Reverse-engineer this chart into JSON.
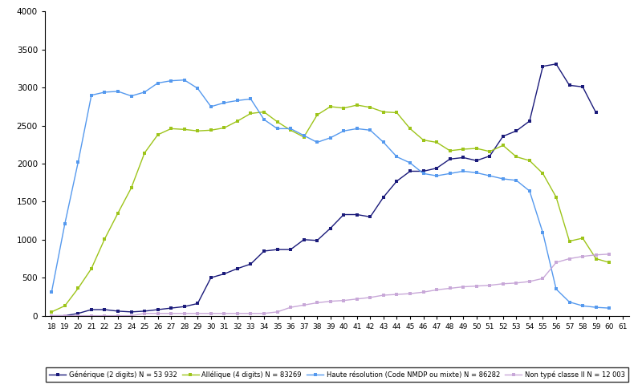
{
  "ages": [
    18,
    19,
    20,
    21,
    22,
    23,
    24,
    25,
    26,
    27,
    28,
    29,
    30,
    31,
    32,
    33,
    34,
    35,
    36,
    37,
    38,
    39,
    40,
    41,
    42,
    43,
    44,
    45,
    46,
    47,
    48,
    49,
    50,
    51,
    52,
    53,
    54,
    55,
    56,
    57,
    58,
    59,
    60,
    61
  ],
  "generique": [
    0,
    0,
    30,
    80,
    80,
    60,
    50,
    60,
    80,
    100,
    120,
    160,
    500,
    550,
    620,
    680,
    850,
    870,
    870,
    1000,
    990,
    1150,
    1330,
    1330,
    1300,
    1560,
    1770,
    1900,
    1900,
    1940,
    2060,
    2080,
    2040,
    2100,
    2360,
    2430,
    2560,
    3280,
    3310,
    3030,
    3010,
    2670,
    null,
    null
  ],
  "allelique": [
    50,
    130,
    360,
    620,
    1010,
    1350,
    1680,
    2140,
    2380,
    2460,
    2450,
    2430,
    2440,
    2470,
    2560,
    2660,
    2680,
    2550,
    2440,
    2350,
    2640,
    2750,
    2730,
    2770,
    2740,
    2680,
    2670,
    2460,
    2310,
    2280,
    2170,
    2190,
    2200,
    2160,
    2240,
    2090,
    2040,
    1870,
    1560,
    980,
    1020,
    750,
    700,
    null
  ],
  "haute_resolution": [
    310,
    1210,
    2020,
    2900,
    2940,
    2950,
    2890,
    2940,
    3060,
    3090,
    3100,
    2990,
    2750,
    2800,
    2830,
    2850,
    2580,
    2460,
    2460,
    2370,
    2280,
    2340,
    2430,
    2460,
    2440,
    2280,
    2090,
    2010,
    1870,
    1840,
    1870,
    1900,
    1880,
    1840,
    1800,
    1780,
    1640,
    1090,
    350,
    180,
    130,
    110,
    100,
    null
  ],
  "non_type": [
    0,
    0,
    0,
    0,
    0,
    0,
    0,
    30,
    30,
    30,
    30,
    30,
    30,
    30,
    30,
    30,
    30,
    50,
    110,
    140,
    170,
    190,
    200,
    220,
    240,
    270,
    280,
    290,
    310,
    340,
    360,
    380,
    390,
    400,
    420,
    430,
    450,
    490,
    700,
    750,
    780,
    800,
    810,
    null
  ],
  "legend_labels": [
    "Générique (2 digits) N = 53 932",
    "Allélique (4 digits) N = 83269",
    "Haute résolution (Code NMDP ou mixte) N = 86282",
    "Non typé classe II N = 12 003"
  ],
  "colors": {
    "generique": "#1a1a7a",
    "allelique": "#9dc41a",
    "haute_resolution": "#5599ee",
    "non_type": "#c8a8d8"
  },
  "ylim": [
    0,
    4000
  ],
  "yticks": [
    0,
    500,
    1000,
    1500,
    2000,
    2500,
    3000,
    3500,
    4000
  ]
}
